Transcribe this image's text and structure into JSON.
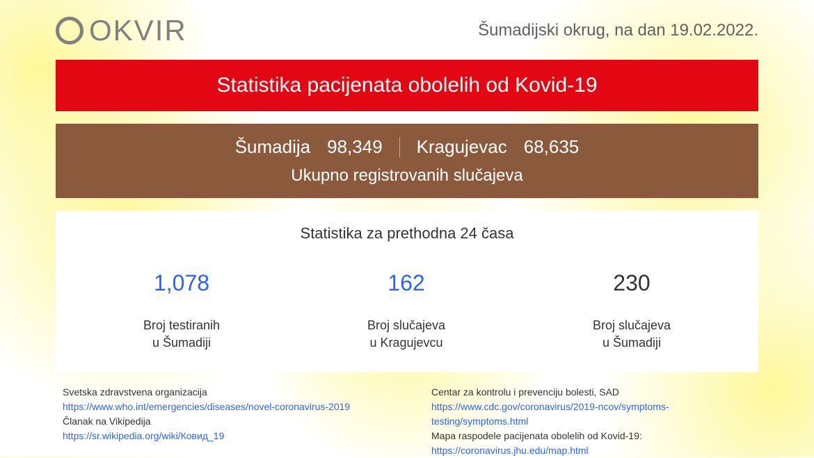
{
  "header": {
    "logo_text": "OKVIR",
    "date_line": "Šumadijski okrug, na dan 19.02.2022."
  },
  "red_banner": {
    "title": "Statistika pacijenata obolelih od Kovid-19",
    "background_color": "#e30613"
  },
  "brown_banner": {
    "region1_label": "Šumadija",
    "region1_value": "98,349",
    "region2_label": "Kragujevac",
    "region2_value": "68,635",
    "subtitle": "Ukupno registrovanih slučajeva",
    "background_color": "#8b5a3c"
  },
  "white_panel": {
    "title": "Statistika za prethodna 24 časa",
    "stats": [
      {
        "value": "1,078",
        "label_line1": "Broj testiranih",
        "label_line2": "u Šumadiji",
        "color": "blue"
      },
      {
        "value": "162",
        "label_line1": "Broj slučajeva",
        "label_line2": "u Kragujevcu",
        "color": "blue"
      },
      {
        "value": "230",
        "label_line1": "Broj slučajeva",
        "label_line2": "u Šumadiji",
        "color": "black"
      }
    ],
    "background_color": "#ffffff"
  },
  "sources": {
    "left": [
      {
        "label": "Svetska zdravstvena organizacija",
        "link": "https://www.who.int/emergencies/diseases/novel-coronavirus-2019"
      },
      {
        "label": "Članak na Vikipedija",
        "link": "https://sr.wikipedia.org/wiki/Ковид_19"
      }
    ],
    "right": [
      {
        "label": "Centar za kontrolu i prevenciju bolesti, SAD",
        "link": "https://www.cdc.gov/coronavirus/2019-ncov/symptoms-testing/symptoms.html"
      },
      {
        "label": "Mapa raspodele pacijenata obolelih od Kovid-19:",
        "link": "https://coronavirus.jhu.edu/map.html"
      }
    ]
  },
  "colors": {
    "link_color": "#2962ff",
    "text_color": "#333333",
    "logo_gray": "#808080"
  }
}
